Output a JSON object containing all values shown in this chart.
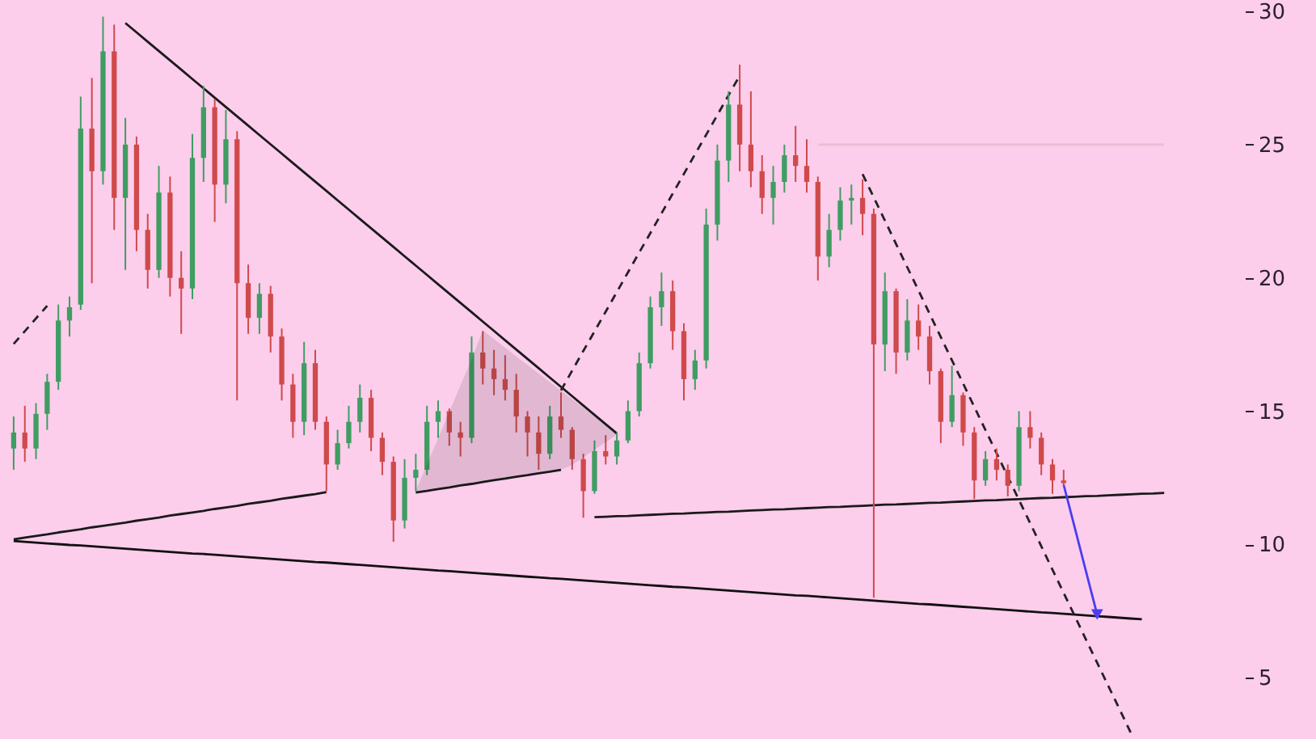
{
  "chart_data": {
    "type": "candlestick",
    "categories": [
      null,
      null,
      null,
      null,
      null,
      null,
      null,
      null,
      null,
      null,
      null,
      null,
      null,
      null,
      null,
      null,
      null,
      null,
      null,
      null,
      null,
      null,
      null,
      null,
      null,
      null,
      null,
      null,
      null,
      null,
      null,
      null,
      null,
      null,
      null,
      null,
      null,
      null,
      null,
      null,
      null,
      null,
      null,
      null,
      null,
      null,
      null,
      null,
      null,
      null,
      null,
      null,
      null,
      null,
      null,
      null,
      null,
      null,
      null,
      null,
      null,
      null,
      null,
      null,
      null,
      null,
      null,
      null,
      null,
      null,
      null,
      null,
      null,
      null,
      null,
      null,
      null,
      null,
      null,
      null,
      null,
      null,
      null,
      null,
      null,
      null,
      null,
      null,
      null,
      null,
      null,
      null,
      null,
      null,
      null,
      null,
      null,
      null,
      null,
      null,
      null,
      null,
      null,
      null,
      null,
      null,
      null,
      null,
      null,
      null
    ],
    "ohlc": [
      [
        13.6,
        14.8,
        12.8,
        14.2
      ],
      [
        14.2,
        15.2,
        13.1,
        13.6
      ],
      [
        13.6,
        15.3,
        13.2,
        14.9
      ],
      [
        14.9,
        16.4,
        14.3,
        16.1
      ],
      [
        16.1,
        19.0,
        15.8,
        18.4
      ],
      [
        18.4,
        19.3,
        17.8,
        18.9
      ],
      [
        19.0,
        26.8,
        18.8,
        25.6
      ],
      [
        25.6,
        27.5,
        19.8,
        24.0
      ],
      [
        24.0,
        29.8,
        23.5,
        28.5
      ],
      [
        28.5,
        29.5,
        21.8,
        23.0
      ],
      [
        23.0,
        26.0,
        20.3,
        25.0
      ],
      [
        25.0,
        25.3,
        21.0,
        21.8
      ],
      [
        21.8,
        22.4,
        19.6,
        20.3
      ],
      [
        20.3,
        24.2,
        20.0,
        23.2
      ],
      [
        23.2,
        23.8,
        19.3,
        20.0
      ],
      [
        20.0,
        21.0,
        17.9,
        19.6
      ],
      [
        19.6,
        25.4,
        19.2,
        24.5
      ],
      [
        24.5,
        27.2,
        23.6,
        26.4
      ],
      [
        26.4,
        26.7,
        22.1,
        23.5
      ],
      [
        23.5,
        26.3,
        22.8,
        25.2
      ],
      [
        25.2,
        25.5,
        15.4,
        19.8
      ],
      [
        19.8,
        20.5,
        17.9,
        18.5
      ],
      [
        18.5,
        19.8,
        17.9,
        19.4
      ],
      [
        19.4,
        19.7,
        17.2,
        17.8
      ],
      [
        17.8,
        18.1,
        15.4,
        16.0
      ],
      [
        16.0,
        16.4,
        14.0,
        14.6
      ],
      [
        14.6,
        17.6,
        14.1,
        16.8
      ],
      [
        16.8,
        17.3,
        14.3,
        14.6
      ],
      [
        14.6,
        14.8,
        12.0,
        13.0
      ],
      [
        13.0,
        14.3,
        12.8,
        13.8
      ],
      [
        13.8,
        15.2,
        13.6,
        14.6
      ],
      [
        14.6,
        16.0,
        14.2,
        15.5
      ],
      [
        15.5,
        15.8,
        13.5,
        14.0
      ],
      [
        14.0,
        14.2,
        12.6,
        13.1
      ],
      [
        13.1,
        13.3,
        10.1,
        10.9
      ],
      [
        10.9,
        13.2,
        10.6,
        12.5
      ],
      [
        12.5,
        13.4,
        12.0,
        12.8
      ],
      [
        12.8,
        15.2,
        12.6,
        14.6
      ],
      [
        14.6,
        15.4,
        14.0,
        15.0
      ],
      [
        15.0,
        15.1,
        13.7,
        14.2
      ],
      [
        14.2,
        14.6,
        13.3,
        14.0
      ],
      [
        14.0,
        17.8,
        13.8,
        17.2
      ],
      [
        17.2,
        18.0,
        16.0,
        16.6
      ],
      [
        16.6,
        17.3,
        15.6,
        16.2
      ],
      [
        16.2,
        17.1,
        15.4,
        15.8
      ],
      [
        15.8,
        16.4,
        14.2,
        14.8
      ],
      [
        14.8,
        15.0,
        13.3,
        14.2
      ],
      [
        14.2,
        14.8,
        12.8,
        13.4
      ],
      [
        13.4,
        15.2,
        13.2,
        14.8
      ],
      [
        14.8,
        15.7,
        14.0,
        14.3
      ],
      [
        14.3,
        14.4,
        12.8,
        13.2
      ],
      [
        13.2,
        13.4,
        11.0,
        12.0
      ],
      [
        12.0,
        13.9,
        11.9,
        13.5
      ],
      [
        13.5,
        14.1,
        13.0,
        13.3
      ],
      [
        13.3,
        14.2,
        13.0,
        13.9
      ],
      [
        13.9,
        15.4,
        13.8,
        15.0
      ],
      [
        15.0,
        17.2,
        14.8,
        16.8
      ],
      [
        16.8,
        19.3,
        16.6,
        18.9
      ],
      [
        18.9,
        20.2,
        18.2,
        19.5
      ],
      [
        19.5,
        19.9,
        17.3,
        18.0
      ],
      [
        18.0,
        18.3,
        15.4,
        16.2
      ],
      [
        16.2,
        17.3,
        15.8,
        16.9
      ],
      [
        16.9,
        22.6,
        16.6,
        22.0
      ],
      [
        22.0,
        25.0,
        21.4,
        24.4
      ],
      [
        24.4,
        27.0,
        23.6,
        26.5
      ],
      [
        26.5,
        28.0,
        24.0,
        25.0
      ],
      [
        25.0,
        27.0,
        23.4,
        24.0
      ],
      [
        24.0,
        24.6,
        22.4,
        23.0
      ],
      [
        23.0,
        24.2,
        22.0,
        23.6
      ],
      [
        23.6,
        25.0,
        23.2,
        24.6
      ],
      [
        24.6,
        25.7,
        23.6,
        24.2
      ],
      [
        24.2,
        25.2,
        23.2,
        23.6
      ],
      [
        23.6,
        23.8,
        19.9,
        20.8
      ],
      [
        20.8,
        22.4,
        20.4,
        21.8
      ],
      [
        21.8,
        23.4,
        21.4,
        22.9
      ],
      [
        22.9,
        23.5,
        22.0,
        23.0
      ],
      [
        23.0,
        23.7,
        21.6,
        22.4
      ],
      [
        22.4,
        22.6,
        8.0,
        17.5
      ],
      [
        17.5,
        20.2,
        16.5,
        19.5
      ],
      [
        19.5,
        19.6,
        16.4,
        17.2
      ],
      [
        17.2,
        19.2,
        16.9,
        18.4
      ],
      [
        18.4,
        19.0,
        17.3,
        17.8
      ],
      [
        17.8,
        18.2,
        16.0,
        16.5
      ],
      [
        16.5,
        16.6,
        13.8,
        14.6
      ],
      [
        14.6,
        16.7,
        14.4,
        15.6
      ],
      [
        15.6,
        15.7,
        13.7,
        14.2
      ],
      [
        14.2,
        14.4,
        11.7,
        12.4
      ],
      [
        12.4,
        13.5,
        12.2,
        13.2
      ],
      [
        13.2,
        13.6,
        12.4,
        12.8
      ],
      [
        12.8,
        13.0,
        11.8,
        12.2
      ],
      [
        12.2,
        15.0,
        12.0,
        14.4
      ],
      [
        14.4,
        15.0,
        13.6,
        14.0
      ],
      [
        14.0,
        14.2,
        12.6,
        13.0
      ],
      [
        13.0,
        13.2,
        11.9,
        12.4
      ],
      [
        12.4,
        12.8,
        12.2,
        12.3
      ],
      null,
      null,
      null,
      null,
      null,
      null,
      null,
      null,
      null,
      null,
      null,
      null,
      null,
      null,
      null
    ],
    "colors": [
      "#3f9d62",
      "#cf4a4a",
      "#3f9d62",
      "#3f9d62",
      "#3f9d62",
      "#3f9d62",
      "#3f9d62",
      "#cf4a4a",
      "#3f9d62",
      "#cf4a4a",
      "#3f9d62",
      "#cf4a4a",
      "#cf4a4a",
      "#3f9d62",
      "#cf4a4a",
      "#cf4a4a",
      "#3f9d62",
      "#3f9d62",
      "#cf4a4a",
      "#3f9d62",
      "#cf4a4a",
      "#cf4a4a",
      "#3f9d62",
      "#cf4a4a",
      "#cf4a4a",
      "#cf4a4a",
      "#3f9d62",
      "#cf4a4a",
      "#cf4a4a",
      "#3f9d62",
      "#3f9d62",
      "#3f9d62",
      "#cf4a4a",
      "#cf4a4a",
      "#cf4a4a",
      "#3f9d62",
      "#3f9d62",
      "#3f9d62",
      "#3f9d62",
      "#cf4a4a",
      "#cf4a4a",
      "#3f9d62",
      "#cf4a4a",
      "#cf4a4a",
      "#cf4a4a",
      "#cf4a4a",
      "#cf4a4a",
      "#cf4a4a",
      "#3f9d62",
      "#cf4a4a",
      "#cf4a4a",
      "#cf4a4a",
      "#3f9d62",
      "#cf4a4a",
      "#3f9d62",
      "#3f9d62",
      "#3f9d62",
      "#3f9d62",
      "#3f9d62",
      "#cf4a4a",
      "#cf4a4a",
      "#3f9d62",
      "#3f9d62",
      "#3f9d62",
      "#3f9d62",
      "#cf4a4a",
      "#cf4a4a",
      "#cf4a4a",
      "#3f9d62",
      "#3f9d62",
      "#cf4a4a",
      "#cf4a4a",
      "#cf4a4a",
      "#3f9d62",
      "#3f9d62",
      "#3f9d62",
      "#cf4a4a",
      "#cf4a4a",
      "#3f9d62",
      "#cf4a4a",
      "#3f9d62",
      "#cf4a4a",
      "#cf4a4a",
      "#cf4a4a",
      "#3f9d62",
      "#cf4a4a",
      "#cf4a4a",
      "#3f9d62",
      "#cf4a4a",
      "#cf4a4a",
      "#3f9d62",
      "#cf4a4a",
      "#cf4a4a",
      "#cf4a4a",
      "#cf4a4a",
      null,
      null,
      null,
      null,
      null,
      null,
      null,
      null,
      null,
      null,
      null,
      null,
      null,
      null,
      null
    ],
    "ylim": [
      2.7,
      30.0
    ],
    "yticks": [
      5,
      10,
      15,
      20,
      25,
      30
    ],
    "tick_labels": "y",
    "series": [
      {
        "type": "line",
        "color": "#222222",
        "line_style": "dashed",
        "values": [
          17.52,
          18.0,
          18.48,
          18.95,
          null,
          null,
          null,
          null,
          null,
          null,
          null,
          null,
          null,
          null,
          null,
          null,
          null,
          null,
          null,
          null,
          null,
          null,
          null,
          null,
          null,
          null,
          null,
          null,
          null,
          null,
          null,
          null,
          null,
          null,
          null,
          null,
          null,
          null,
          null,
          null,
          null,
          null,
          null,
          null,
          null,
          null,
          null,
          null,
          null,
          null,
          null,
          null,
          null,
          null,
          null,
          null,
          null,
          null,
          null,
          null,
          null,
          null,
          null,
          null,
          null,
          null,
          null,
          null,
          null,
          null,
          null,
          null,
          null,
          null,
          null,
          null,
          null,
          null,
          null,
          null,
          null,
          null,
          null,
          null,
          null,
          null,
          null,
          null,
          null,
          null,
          null,
          null,
          null,
          null,
          null,
          null,
          null,
          null,
          null,
          null,
          null,
          null,
          null,
          null,
          null,
          null,
          null,
          null,
          null,
          null
        ]
      },
      {
        "type": "line",
        "color": "#1a1a1a",
        "values": [
          null,
          null,
          null,
          null,
          null,
          null,
          null,
          null,
          null,
          null,
          29.56,
          29.21,
          28.86,
          28.51,
          28.16,
          27.81,
          27.46,
          27.11,
          26.76,
          26.41,
          26.06,
          25.71,
          25.36,
          25.01,
          24.66,
          24.31,
          23.96,
          23.61,
          23.26,
          22.91,
          22.56,
          22.21,
          21.86,
          21.51,
          21.16,
          20.81,
          20.46,
          20.11,
          19.76,
          19.41,
          19.06,
          18.71,
          18.36,
          18.01,
          17.66,
          17.31,
          16.96,
          16.61,
          16.26,
          15.91,
          15.56,
          15.21,
          14.86,
          14.51,
          14.16,
          null,
          null,
          null,
          null,
          null,
          null,
          null,
          null,
          null,
          null,
          null,
          null,
          null,
          null,
          null,
          null,
          null,
          null,
          null,
          null,
          null,
          null,
          null,
          null,
          null,
          null,
          null,
          null,
          null,
          null,
          null,
          null,
          null,
          null,
          null,
          null,
          null,
          null,
          null,
          null,
          null,
          null,
          null,
          null,
          null,
          null,
          null,
          null,
          null,
          null,
          null,
          null,
          null,
          null,
          null
        ]
      },
      {
        "type": "line",
        "color": "#1a1a1a",
        "values": [
          10.19,
          10.26,
          10.32,
          10.38,
          10.45,
          10.51,
          10.57,
          10.64,
          10.7,
          10.76,
          10.82,
          10.89,
          10.95,
          11.01,
          11.08,
          11.14,
          11.2,
          11.26,
          11.33,
          11.39,
          11.45,
          11.52,
          11.58,
          11.64,
          11.71,
          11.77,
          11.83,
          11.89,
          11.96,
          null,
          null,
          null,
          null,
          null,
          null,
          null,
          null,
          null,
          null,
          null,
          null,
          null,
          null,
          null,
          null,
          null,
          null,
          null,
          null,
          null,
          null,
          null,
          null,
          null,
          null,
          null,
          null,
          null,
          null,
          null,
          null,
          null,
          null,
          null,
          null,
          null,
          null,
          null,
          null,
          null,
          null,
          null,
          null,
          null,
          null,
          null,
          null,
          null,
          null,
          null,
          null,
          null,
          null,
          null,
          null,
          null,
          null,
          null,
          null,
          null,
          null,
          null,
          null,
          null,
          null,
          null,
          null,
          null,
          null,
          null,
          null,
          null,
          null,
          null,
          null,
          null,
          null,
          null,
          null,
          null
        ]
      },
      {
        "type": "line",
        "color": "#1a1a1a",
        "values": [
          null,
          null,
          null,
          null,
          null,
          null,
          null,
          null,
          null,
          null,
          null,
          null,
          null,
          null,
          null,
          null,
          null,
          null,
          null,
          null,
          null,
          null,
          null,
          null,
          null,
          null,
          null,
          null,
          null,
          null,
          null,
          null,
          null,
          null,
          null,
          null,
          11.95,
          12.01,
          12.08,
          12.14,
          12.21,
          12.27,
          12.34,
          12.41,
          12.47,
          12.54,
          12.6,
          12.67,
          12.73,
          12.8,
          null,
          null,
          null,
          null,
          null,
          null,
          null,
          null,
          null,
          null,
          null,
          null,
          null,
          null,
          null,
          null,
          null,
          null,
          null,
          null,
          null,
          null,
          null,
          null,
          null,
          null,
          null,
          null,
          null,
          null,
          null,
          null,
          null,
          null,
          null,
          null,
          null,
          null,
          null,
          null,
          null,
          null,
          null,
          null,
          null,
          null,
          null,
          null,
          null,
          null,
          null,
          null,
          null,
          null,
          null,
          null,
          null,
          null,
          null,
          null
        ],
        "upper": [
          null,
          null,
          null,
          null,
          null,
          null,
          null,
          null,
          null,
          null,
          null,
          null,
          null,
          null,
          null,
          null,
          null,
          null,
          null,
          null,
          null,
          null,
          null,
          null,
          null,
          null,
          null,
          null,
          null,
          null,
          null,
          null,
          null,
          null,
          null,
          null,
          12.01,
          13.0,
          13.98,
          14.97,
          15.96,
          16.94,
          18.04,
          17.7,
          17.38,
          17.05,
          16.73,
          16.41,
          16.09,
          15.77,
          15.45,
          15.12,
          14.8,
          14.48,
          14.16,
          null,
          null,
          null,
          null,
          null,
          null,
          null,
          null,
          null,
          null,
          null,
          null,
          null,
          null,
          null,
          null,
          null,
          null,
          null,
          null,
          null,
          null,
          null,
          null,
          null,
          null,
          null,
          null,
          null,
          null,
          null,
          null,
          null,
          null,
          null,
          null,
          null,
          null,
          null,
          null,
          null,
          null,
          null,
          null,
          null,
          null,
          null,
          null,
          null,
          null,
          null,
          null,
          null,
          null,
          null
        ],
        "lower": [
          null,
          null,
          null,
          null,
          null,
          null,
          null,
          null,
          null,
          null,
          null,
          null,
          null,
          null,
          null,
          null,
          null,
          null,
          null,
          null,
          null,
          null,
          null,
          null,
          null,
          null,
          null,
          null,
          null,
          null,
          null,
          null,
          null,
          null,
          null,
          null,
          11.95,
          12.01,
          12.08,
          12.14,
          12.21,
          12.27,
          12.34,
          12.41,
          12.47,
          12.54,
          12.6,
          12.67,
          12.73,
          12.8,
          12.98,
          13.26,
          13.55,
          13.83,
          14.12,
          null,
          null,
          null,
          null,
          null,
          null,
          null,
          null,
          null,
          null,
          null,
          null,
          null,
          null,
          null,
          null,
          null,
          null,
          null,
          null,
          null,
          null,
          null,
          null,
          null,
          null,
          null,
          null,
          null,
          null,
          null,
          null,
          null,
          null,
          null,
          null,
          null,
          null,
          null,
          null,
          null,
          null,
          null,
          null,
          null,
          null,
          null,
          null,
          null,
          null,
          null,
          null,
          null,
          null,
          null
        ]
      },
      {
        "type": "line",
        "color": "#222222",
        "line_style": "dashed",
        "values": [
          null,
          null,
          null,
          null,
          null,
          null,
          null,
          null,
          null,
          null,
          null,
          null,
          null,
          null,
          null,
          null,
          null,
          null,
          null,
          null,
          null,
          null,
          null,
          null,
          null,
          null,
          null,
          null,
          null,
          null,
          null,
          null,
          null,
          null,
          null,
          null,
          null,
          null,
          null,
          null,
          null,
          null,
          null,
          null,
          null,
          null,
          null,
          null,
          null,
          15.78,
          16.52,
          17.26,
          17.99,
          18.73,
          19.47,
          20.21,
          20.95,
          21.68,
          22.42,
          23.16,
          23.9,
          24.64,
          25.37,
          26.11,
          26.85,
          27.59,
          null,
          null,
          null,
          null,
          null,
          null,
          null,
          null,
          null,
          null,
          null,
          null,
          null,
          null,
          null,
          null,
          null,
          null,
          null,
          null,
          null,
          null,
          null,
          null,
          null,
          null,
          null,
          null,
          null,
          null,
          null,
          null,
          null,
          null,
          null,
          null,
          null,
          null,
          null,
          null,
          null,
          null,
          null,
          null
        ]
      },
      {
        "type": "line",
        "color": "#1a1a1a",
        "values": [
          null,
          null,
          null,
          null,
          null,
          null,
          null,
          null,
          null,
          null,
          null,
          null,
          null,
          null,
          null,
          null,
          null,
          null,
          null,
          null,
          null,
          null,
          null,
          null,
          null,
          null,
          null,
          null,
          null,
          null,
          null,
          null,
          null,
          null,
          null,
          null,
          null,
          null,
          null,
          null,
          null,
          null,
          null,
          null,
          null,
          null,
          null,
          null,
          null,
          null,
          null,
          null,
          11.02,
          11.04,
          11.06,
          11.07,
          11.09,
          11.11,
          11.13,
          11.15,
          11.16,
          11.18,
          11.2,
          11.22,
          11.23,
          11.25,
          11.27,
          11.29,
          11.31,
          11.32,
          11.34,
          11.36,
          11.38,
          11.4,
          11.41,
          11.43,
          11.45,
          11.47,
          11.49,
          11.5,
          11.52,
          11.54,
          11.56,
          11.57,
          11.59,
          11.61,
          11.63,
          11.65,
          11.66,
          11.68,
          11.7,
          11.72,
          11.74,
          11.75,
          11.77,
          11.79,
          11.81,
          11.82,
          11.84,
          11.86,
          11.88,
          11.9,
          11.91,
          11.93,
          null,
          null,
          null,
          null,
          null,
          null
        ]
      },
      {
        "type": "line",
        "color": "#111111",
        "values": [
          10.13,
          10.1,
          10.07,
          10.04,
          10.01,
          9.98,
          9.96,
          9.93,
          9.9,
          9.87,
          9.84,
          9.81,
          9.78,
          9.75,
          9.72,
          9.69,
          9.66,
          9.64,
          9.61,
          9.58,
          9.55,
          9.52,
          9.49,
          9.46,
          9.43,
          9.4,
          9.37,
          9.34,
          9.32,
          9.29,
          9.26,
          9.23,
          9.2,
          9.17,
          9.14,
          9.11,
          9.08,
          9.05,
          9.02,
          9.0,
          8.97,
          8.94,
          8.91,
          8.88,
          8.85,
          8.82,
          8.79,
          8.76,
          8.73,
          8.71,
          8.68,
          8.65,
          8.62,
          8.59,
          8.56,
          8.53,
          8.5,
          8.47,
          8.44,
          8.41,
          8.39,
          8.36,
          8.33,
          8.3,
          8.27,
          8.24,
          8.21,
          8.18,
          8.15,
          8.12,
          8.09,
          8.07,
          8.04,
          8.01,
          7.98,
          7.95,
          7.92,
          7.89,
          7.86,
          7.83,
          7.8,
          7.77,
          7.75,
          7.72,
          7.69,
          7.66,
          7.63,
          7.6,
          7.57,
          7.54,
          7.51,
          7.48,
          7.45,
          7.43,
          7.4,
          7.37,
          7.34,
          7.31,
          7.28,
          7.25,
          7.22,
          7.19,
          null,
          null,
          null,
          null,
          null,
          null,
          null,
          null
        ]
      },
      {
        "type": "line",
        "color": "#222222",
        "line_style": "dashed",
        "values": [
          null,
          null,
          null,
          null,
          null,
          null,
          null,
          null,
          null,
          null,
          null,
          null,
          null,
          null,
          null,
          null,
          null,
          null,
          null,
          null,
          null,
          null,
          null,
          null,
          null,
          null,
          null,
          null,
          null,
          null,
          null,
          null,
          null,
          null,
          null,
          null,
          null,
          null,
          null,
          null,
          null,
          null,
          null,
          null,
          null,
          null,
          null,
          null,
          null,
          null,
          null,
          null,
          null,
          null,
          null,
          null,
          null,
          null,
          null,
          null,
          null,
          null,
          null,
          null,
          null,
          null,
          null,
          null,
          null,
          null,
          null,
          null,
          null,
          null,
          null,
          null,
          23.89,
          23.02,
          22.15,
          21.27,
          20.4,
          19.53,
          18.65,
          17.78,
          16.91,
          16.04,
          15.16,
          14.29,
          13.42,
          12.54,
          11.67,
          10.8,
          9.93,
          9.05,
          8.18,
          7.31,
          6.43,
          5.56,
          4.69,
          3.82,
          2.94,
          null,
          null,
          null,
          null,
          null,
          null,
          null,
          null,
          null
        ]
      },
      {
        "type": "line",
        "color": "#eebcd3",
        "values": [
          null,
          null,
          null,
          null,
          null,
          null,
          null,
          null,
          null,
          null,
          null,
          null,
          null,
          null,
          null,
          null,
          null,
          null,
          null,
          null,
          null,
          null,
          null,
          null,
          null,
          null,
          null,
          null,
          null,
          null,
          null,
          null,
          null,
          null,
          null,
          null,
          null,
          null,
          null,
          null,
          null,
          null,
          null,
          null,
          null,
          null,
          null,
          null,
          null,
          null,
          null,
          null,
          null,
          null,
          null,
          null,
          null,
          null,
          null,
          null,
          null,
          null,
          null,
          null,
          null,
          null,
          null,
          null,
          null,
          null,
          null,
          null,
          25,
          25,
          25,
          25,
          25,
          25,
          25,
          25,
          25,
          25,
          25,
          25,
          25,
          25,
          25,
          25,
          25,
          25,
          25,
          25,
          25,
          25,
          25,
          25,
          25,
          25,
          25,
          25,
          25,
          25,
          25,
          25,
          null,
          null,
          null,
          null,
          null,
          null
        ]
      },
      {
        "type": "line",
        "color": "#4a3ef0",
        "values": [
          null,
          null,
          null,
          null,
          null,
          null,
          null,
          null,
          null,
          null,
          null,
          null,
          null,
          null,
          null,
          null,
          null,
          null,
          null,
          null,
          null,
          null,
          null,
          null,
          null,
          null,
          null,
          null,
          null,
          null,
          null,
          null,
          null,
          null,
          null,
          null,
          null,
          null,
          null,
          null,
          null,
          null,
          null,
          null,
          null,
          null,
          null,
          null,
          null,
          null,
          null,
          null,
          null,
          null,
          null,
          null,
          null,
          null,
          null,
          null,
          null,
          null,
          null,
          null,
          null,
          null,
          null,
          null,
          null,
          null,
          null,
          null,
          null,
          null,
          null,
          null,
          null,
          null,
          null,
          null,
          null,
          null,
          null,
          null,
          null,
          null,
          null,
          null,
          null,
          null,
          null,
          null,
          null,
          null,
          12.24,
          10.62,
          8.99,
          7.37,
          null,
          null,
          null,
          null,
          null,
          null,
          null,
          null,
          null,
          null,
          null,
          null
        ]
      },
      {
        "type": "scatter",
        "color": "#4a3ef0",
        "marker": "triangle",
        "values": [
          null,
          null,
          null,
          null,
          null,
          null,
          null,
          null,
          null,
          null,
          null,
          null,
          null,
          null,
          null,
          null,
          null,
          null,
          null,
          null,
          null,
          null,
          null,
          null,
          null,
          null,
          null,
          null,
          null,
          null,
          null,
          null,
          null,
          null,
          null,
          null,
          null,
          null,
          null,
          null,
          null,
          null,
          null,
          null,
          null,
          null,
          null,
          null,
          null,
          null,
          null,
          null,
          null,
          null,
          null,
          null,
          null,
          null,
          null,
          null,
          null,
          null,
          null,
          null,
          null,
          null,
          null,
          null,
          null,
          null,
          null,
          null,
          null,
          null,
          null,
          null,
          null,
          null,
          null,
          null,
          null,
          null,
          null,
          null,
          null,
          null,
          null,
          null,
          null,
          null,
          null,
          null,
          null,
          null,
          null,
          null,
          null,
          7.37,
          null,
          null,
          null,
          null,
          null,
          null,
          null,
          null,
          null,
          null,
          null,
          null
        ]
      }
    ]
  }
}
